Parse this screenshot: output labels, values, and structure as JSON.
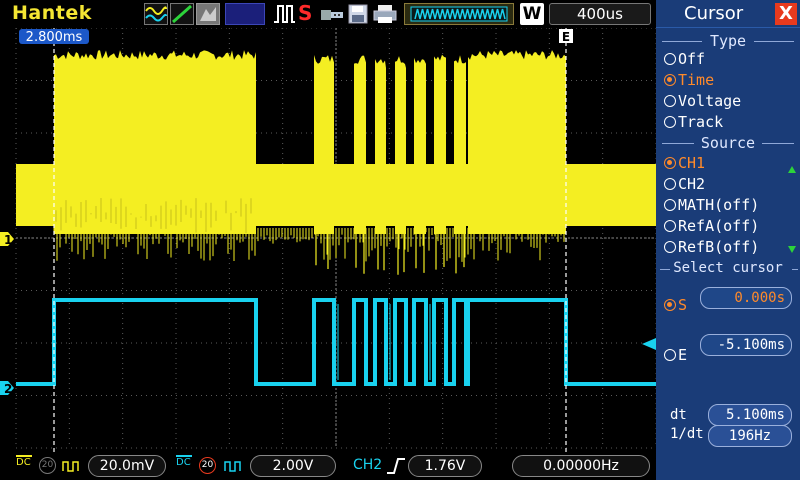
{
  "brand": "Hantek",
  "top_bar": {
    "stop_indicator": "S",
    "trigger_mode": "W",
    "timebase": "400us",
    "icons": [
      "ch-wave-icon",
      "line-icon",
      "screen-icon",
      "run-state-icon",
      "usb-icon",
      "save-icon",
      "print-icon",
      "memory-bar-icon"
    ]
  },
  "plot": {
    "cursor_s_label": "2.800ms",
    "cursor_e_label": "E",
    "ch1_marker": "1",
    "ch2_marker": "2",
    "ch1_color": "#f4ee22",
    "ch2_color": "#19d2ef",
    "grid_color": "#5a5a5a"
  },
  "bottom_bar": {
    "ch1_coupling": "DC",
    "ch1_bw": "20",
    "ch1_scale": "20.0mV",
    "ch2_coupling": "DC",
    "ch2_bw": "20",
    "ch2_scale": "2.00V",
    "trigger_source": "CH2",
    "trigger_level": "1.76V",
    "frequency": "0.00000Hz"
  },
  "menu": {
    "title": "Cursor",
    "close": "X",
    "type_heading": "Type",
    "type_options": [
      "Off",
      "Time",
      "Voltage",
      "Track"
    ],
    "type_selected": 1,
    "source_heading": "Source",
    "source_options": [
      "CH1",
      "CH2",
      "MATH(off)",
      "RefA(off)",
      "RefB(off)"
    ],
    "source_selected": 0,
    "select_heading": "Select cursor",
    "cursor_s_name": "S",
    "cursor_s_value": "0.000s",
    "cursor_e_name": "E",
    "cursor_e_value": "-5.100ms",
    "dt_label": "dt",
    "dt_value": "5.100ms",
    "inv_dt_label": "1/dt",
    "inv_dt_value": "196Hz",
    "accent_color": "#ff8a2a"
  }
}
